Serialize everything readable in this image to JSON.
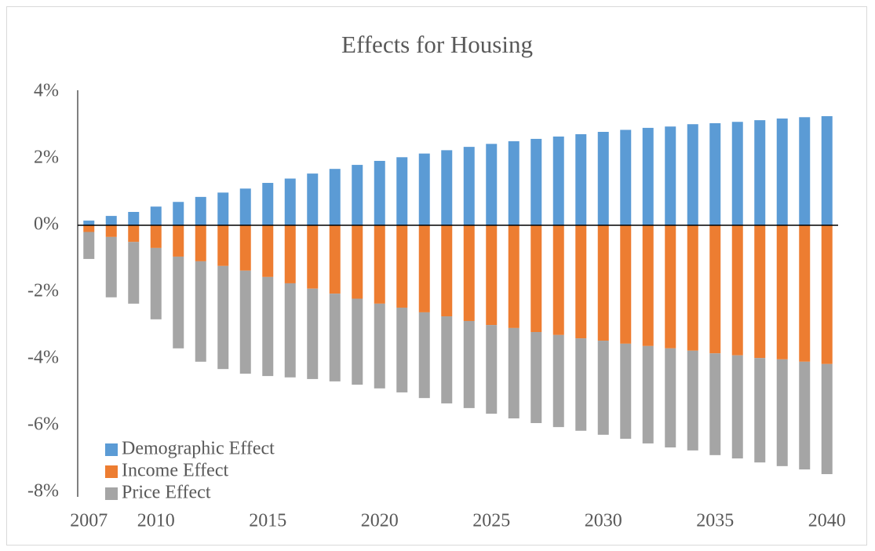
{
  "chart_data": {
    "type": "bar",
    "stacked": true,
    "title": "Effects for Housing",
    "categories": [
      "2007",
      null,
      null,
      "2010",
      null,
      null,
      null,
      null,
      "2015",
      null,
      null,
      null,
      null,
      "2020",
      null,
      null,
      null,
      null,
      "2025",
      null,
      null,
      null,
      null,
      "2030",
      null,
      null,
      null,
      null,
      "2035",
      null,
      null,
      null,
      null,
      "2040"
    ],
    "series": [
      {
        "name": "Demographic Effect",
        "color": "#5b9bd5",
        "values": [
          0.14,
          0.28,
          0.4,
          0.56,
          0.7,
          0.85,
          0.98,
          1.1,
          1.27,
          1.4,
          1.55,
          1.69,
          1.81,
          1.93,
          2.04,
          2.15,
          2.25,
          2.35,
          2.44,
          2.52,
          2.59,
          2.66,
          2.73,
          2.8,
          2.86,
          2.92,
          2.96,
          3.03,
          3.06,
          3.1,
          3.15,
          3.2,
          3.24,
          3.27
        ]
      },
      {
        "name": "Income Effect",
        "color": "#ed7d31",
        "values": [
          -0.2,
          -0.35,
          -0.5,
          -0.68,
          -0.94,
          -1.08,
          -1.22,
          -1.36,
          -1.55,
          -1.74,
          -1.9,
          -2.05,
          -2.2,
          -2.35,
          -2.47,
          -2.61,
          -2.73,
          -2.87,
          -2.99,
          -3.08,
          -3.2,
          -3.29,
          -3.39,
          -3.46,
          -3.55,
          -3.62,
          -3.69,
          -3.76,
          -3.84,
          -3.9,
          -3.98,
          -4.02,
          -4.09,
          -4.16
        ]
      },
      {
        "name": "Price Effect",
        "color": "#a5a5a5",
        "values": [
          -0.81,
          -1.81,
          -1.85,
          -2.14,
          -2.75,
          -3.01,
          -3.09,
          -3.09,
          -2.97,
          -2.82,
          -2.71,
          -2.63,
          -2.58,
          -2.54,
          -2.54,
          -2.57,
          -2.61,
          -2.61,
          -2.66,
          -2.71,
          -2.73,
          -2.76,
          -2.77,
          -2.82,
          -2.85,
          -2.92,
          -2.97,
          -2.99,
          -3.05,
          -3.09,
          -3.13,
          -3.2,
          -3.23,
          -3.3
        ]
      }
    ],
    "ylim": [
      -8,
      4
    ],
    "yticks": [
      {
        "value": -8,
        "label": "-8%"
      },
      {
        "value": -6,
        "label": "-6%"
      },
      {
        "value": -4,
        "label": "-4%"
      },
      {
        "value": -2,
        "label": "-2%"
      },
      {
        "value": 0,
        "label": "0%"
      },
      {
        "value": 2,
        "label": "2%"
      },
      {
        "value": 4,
        "label": "4%"
      }
    ],
    "legend": "lower left"
  }
}
